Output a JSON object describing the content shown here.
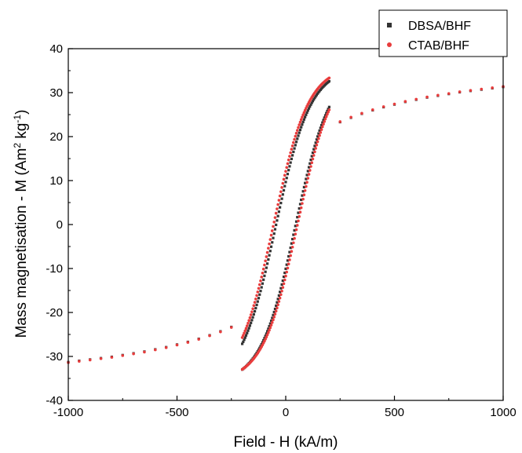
{
  "chart_data": {
    "type": "scatter",
    "xlabel": "Field - H (kA/m)",
    "ylabel": "Mass magnetisation - M (Am² kg⁻¹)",
    "ylabel_parts": {
      "main": "Mass magnetisation - M (Am",
      "sup1": "2",
      "mid": " kg",
      "sup2": "-1",
      "end": ")"
    },
    "xlim": [
      -1000,
      1000
    ],
    "ylim": [
      -40,
      40
    ],
    "x_ticks": [
      -1000,
      -500,
      0,
      500,
      1000
    ],
    "y_ticks": [
      -40,
      -30,
      -20,
      -10,
      0,
      10,
      20,
      30,
      40
    ],
    "grid": false,
    "legend_position": "top-right",
    "series": [
      {
        "name": "DBSA/BHF",
        "marker": "square",
        "color": "#333333",
        "loop": {
          "Ms": 36,
          "Hc": 45,
          "a": 160,
          "Hmax": 200,
          "y_shift": -0.2,
          "n_points": 90
        },
        "tail_x": [
          -1000,
          -950,
          -900,
          -850,
          -800,
          -750,
          -700,
          -650,
          -600,
          -550,
          -500,
          -450,
          -400,
          -350,
          -300,
          -250,
          250,
          300,
          350,
          400,
          450,
          500,
          550,
          600,
          650,
          700,
          750,
          800,
          850,
          900,
          950,
          1000
        ],
        "tail_y": [
          -31.3,
          -31.0,
          -30.7,
          -30.4,
          -30.1,
          -29.7,
          -29.3,
          -28.9,
          -28.4,
          -27.9,
          -27.3,
          -26.7,
          -26.0,
          -25.2,
          -24.3,
          -23.3,
          23.3,
          24.3,
          25.2,
          26.0,
          26.7,
          27.3,
          27.9,
          28.4,
          28.9,
          29.3,
          29.7,
          30.1,
          30.4,
          30.7,
          31.0,
          31.3
        ]
      },
      {
        "name": "CTAB/BHF",
        "marker": "circle",
        "color": "#e83c3c",
        "loop": {
          "Ms": 36,
          "Hc": 55,
          "a": 160,
          "Hmax": 200,
          "y_shift": 0.2,
          "n_points": 90
        },
        "tail_x": [
          -1000,
          -950,
          -900,
          -850,
          -800,
          -750,
          -700,
          -650,
          -600,
          -550,
          -500,
          -450,
          -400,
          -350,
          -300,
          -250,
          250,
          300,
          350,
          400,
          450,
          500,
          550,
          600,
          650,
          700,
          750,
          800,
          850,
          900,
          950,
          1000
        ],
        "tail_y": [
          -31.4,
          -31.1,
          -30.8,
          -30.5,
          -30.2,
          -29.8,
          -29.4,
          -29.0,
          -28.5,
          -28.0,
          -27.4,
          -26.8,
          -26.1,
          -25.3,
          -24.4,
          -23.4,
          23.4,
          24.4,
          25.3,
          26.1,
          26.8,
          27.4,
          28.0,
          28.5,
          29.0,
          29.4,
          29.8,
          30.2,
          30.5,
          30.8,
          31.1,
          31.4
        ]
      }
    ]
  }
}
